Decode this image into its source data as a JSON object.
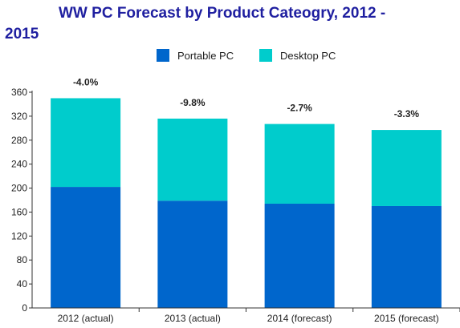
{
  "chart_data": {
    "type": "bar",
    "stacked": true,
    "title_line1": "WW PC Forecast by Product Cateogry, 2012 -",
    "title_line2": "2015",
    "categories": [
      "2012 (actual)",
      "2013 (actual)",
      "2014 (forecast)",
      "2015 (forecast)"
    ],
    "series": [
      {
        "name": "Portable PC",
        "color": "#0066cc",
        "values": [
          202,
          179,
          174,
          170
        ]
      },
      {
        "name": "Desktop PC",
        "color": "#00cccc",
        "values": [
          148,
          137,
          133,
          127
        ]
      }
    ],
    "annotations": [
      "-4.0%",
      "-9.8%",
      "-2.7%",
      "-3.3%"
    ],
    "y_ticks": [
      "0",
      "40",
      "80",
      "120",
      "160",
      "200",
      "240",
      "280",
      "320",
      "360"
    ],
    "ylim": [
      0,
      360
    ],
    "legend_position": "top",
    "grid": false,
    "xlabel": "",
    "ylabel": ""
  }
}
